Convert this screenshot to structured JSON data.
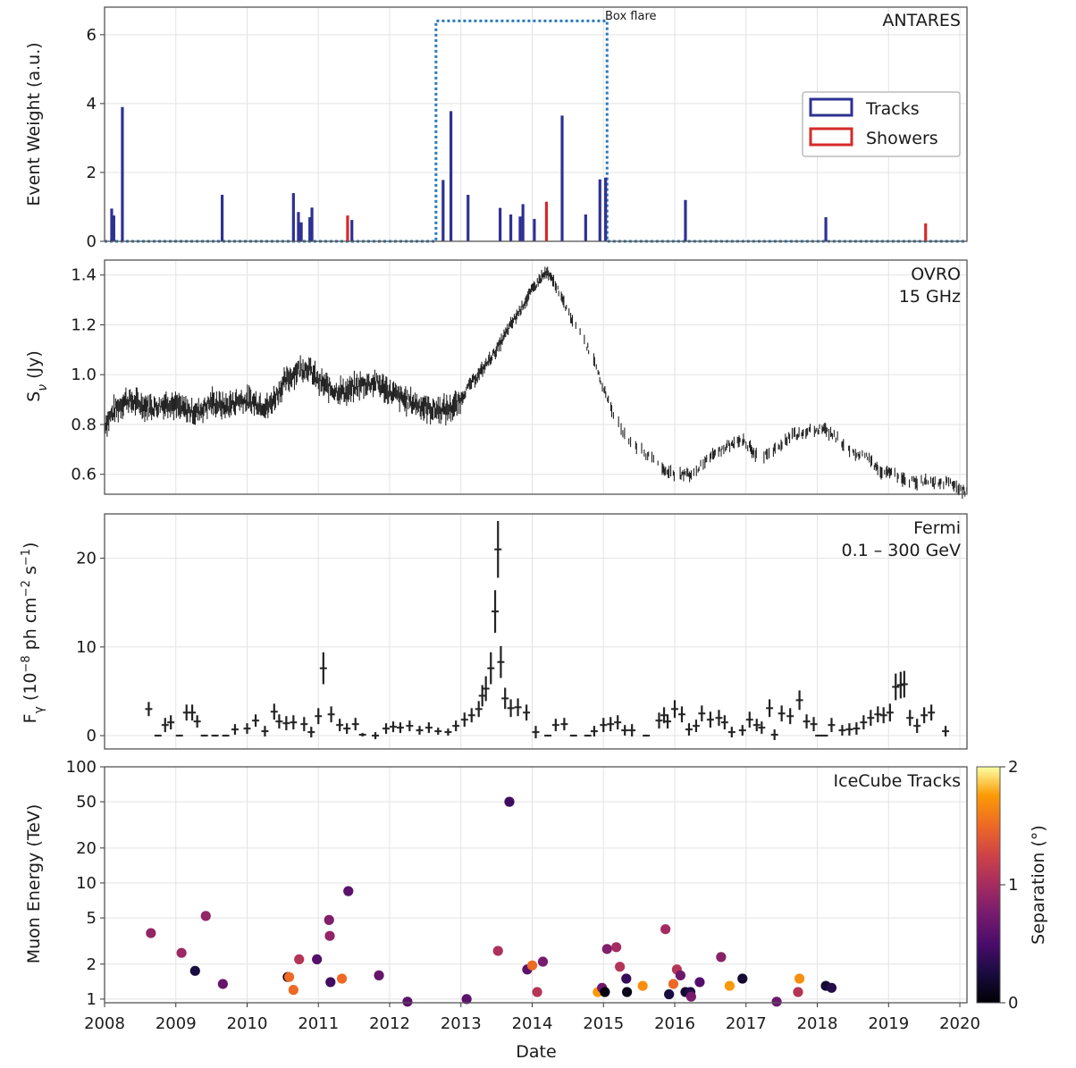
{
  "chart_data": [
    {
      "type": "bar",
      "panel": "antares",
      "label": "ANTARES",
      "ylabel": "Event Weight (a.u.)",
      "ylim": [
        0,
        6.8
      ],
      "yticks": [
        0,
        2,
        4,
        6
      ],
      "legend": {
        "position": "right",
        "entries": [
          {
            "name": "Tracks",
            "color": "#2e3192"
          },
          {
            "name": "Showers",
            "color": "#d42a2a"
          }
        ]
      },
      "box_flare": {
        "label": "Box flare",
        "start": 2012.65,
        "end": 2015.05,
        "height": 6.4,
        "color": "#2a7ab9"
      },
      "tracks": [
        {
          "x": 2008.1,
          "w": 0.95
        },
        {
          "x": 2008.13,
          "w": 0.75
        },
        {
          "x": 2008.25,
          "w": 3.9
        },
        {
          "x": 2009.65,
          "w": 1.35
        },
        {
          "x": 2010.65,
          "w": 1.4
        },
        {
          "x": 2010.72,
          "w": 0.85
        },
        {
          "x": 2010.76,
          "w": 0.55
        },
        {
          "x": 2010.88,
          "w": 0.7
        },
        {
          "x": 2010.91,
          "w": 0.98
        },
        {
          "x": 2011.47,
          "w": 0.62
        },
        {
          "x": 2012.75,
          "w": 1.78
        },
        {
          "x": 2012.86,
          "w": 3.78
        },
        {
          "x": 2013.1,
          "w": 1.35
        },
        {
          "x": 2013.55,
          "w": 0.97
        },
        {
          "x": 2013.7,
          "w": 0.78
        },
        {
          "x": 2013.83,
          "w": 0.72
        },
        {
          "x": 2013.87,
          "w": 1.08
        },
        {
          "x": 2014.03,
          "w": 0.65
        },
        {
          "x": 2014.42,
          "w": 3.65
        },
        {
          "x": 2014.75,
          "w": 0.78
        },
        {
          "x": 2014.95,
          "w": 1.8
        },
        {
          "x": 2015.03,
          "w": 1.85
        },
        {
          "x": 2016.15,
          "w": 1.2
        },
        {
          "x": 2018.12,
          "w": 0.7
        }
      ],
      "showers": [
        {
          "x": 2011.41,
          "w": 0.75
        },
        {
          "x": 2014.2,
          "w": 1.15
        },
        {
          "x": 2019.52,
          "w": 0.52
        }
      ]
    },
    {
      "type": "line",
      "panel": "ovro",
      "label": "OVRO",
      "sublabel": "15 GHz",
      "ylabel": "S_ν (Jy)",
      "ylim": [
        0.52,
        1.46
      ],
      "yticks": [
        0.6,
        0.8,
        1.0,
        1.2,
        1.4
      ],
      "x": [
        2008.0,
        2008.15,
        2008.3,
        2008.5,
        2008.7,
        2008.9,
        2009.1,
        2009.3,
        2009.5,
        2009.7,
        2009.9,
        2010.1,
        2010.3,
        2010.5,
        2010.7,
        2010.85,
        2011.0,
        2011.2,
        2011.4,
        2011.6,
        2011.8,
        2012.0,
        2012.2,
        2012.4,
        2012.6,
        2012.8,
        2012.95,
        2013.1,
        2013.3,
        2013.5,
        2013.7,
        2013.85,
        2014.0,
        2014.1,
        2014.2,
        2014.35,
        2014.5,
        2014.7,
        2014.85,
        2015.0,
        2015.15,
        2015.35,
        2015.5,
        2015.7,
        2015.85,
        2016.0,
        2016.2,
        2016.4,
        2016.6,
        2016.8,
        2016.95,
        2017.2,
        2017.4,
        2017.6,
        2017.8,
        2017.95,
        2018.1,
        2018.3,
        2018.5,
        2018.7,
        2018.9,
        2019.1,
        2019.3,
        2019.5,
        2019.7,
        2019.85,
        2020.0,
        2020.1
      ],
      "values": [
        0.8,
        0.86,
        0.9,
        0.88,
        0.87,
        0.89,
        0.86,
        0.85,
        0.89,
        0.87,
        0.9,
        0.89,
        0.87,
        0.96,
        1.02,
        1.03,
        0.97,
        0.94,
        0.93,
        0.96,
        0.97,
        0.93,
        0.9,
        0.88,
        0.86,
        0.86,
        0.88,
        0.95,
        1.02,
        1.1,
        1.2,
        1.27,
        1.34,
        1.38,
        1.41,
        1.35,
        1.25,
        1.16,
        1.06,
        0.95,
        0.83,
        0.74,
        0.7,
        0.66,
        0.62,
        0.6,
        0.6,
        0.64,
        0.69,
        0.72,
        0.74,
        0.66,
        0.7,
        0.75,
        0.77,
        0.78,
        0.78,
        0.74,
        0.69,
        0.67,
        0.61,
        0.6,
        0.57,
        0.57,
        0.56,
        0.57,
        0.54,
        0.53
      ]
    },
    {
      "type": "scatter",
      "panel": "fermi",
      "label": "Fermi",
      "sublabel": "0.1 – 300 GeV",
      "ylabel": "F_γ (10^-8 ph cm^-2 s^-1)",
      "ylim": [
        -1.5,
        25
      ],
      "yticks": [
        0,
        10,
        20
      ],
      "points": [
        [
          2008.62,
          3.0,
          0.8
        ],
        [
          2008.75,
          0.0,
          0.1
        ],
        [
          2008.85,
          1.2,
          0.8
        ],
        [
          2008.93,
          1.5,
          0.8
        ],
        [
          2009.05,
          0.0,
          0.1
        ],
        [
          2009.15,
          2.6,
          0.9
        ],
        [
          2009.23,
          2.6,
          0.9
        ],
        [
          2009.3,
          1.6,
          0.7
        ],
        [
          2009.4,
          0.0,
          0.1
        ],
        [
          2009.55,
          0.0,
          0.1
        ],
        [
          2009.7,
          0.0,
          0.1
        ],
        [
          2009.83,
          0.7,
          0.6
        ],
        [
          2010.0,
          0.8,
          0.6
        ],
        [
          2010.12,
          1.7,
          0.7
        ],
        [
          2010.25,
          0.5,
          0.6
        ],
        [
          2010.38,
          2.7,
          0.9
        ],
        [
          2010.45,
          1.6,
          0.8
        ],
        [
          2010.55,
          1.4,
          0.8
        ],
        [
          2010.65,
          1.5,
          0.8
        ],
        [
          2010.8,
          1.3,
          0.8
        ],
        [
          2010.9,
          0.4,
          0.6
        ],
        [
          2011.0,
          2.2,
          0.9
        ],
        [
          2011.07,
          7.6,
          1.8
        ],
        [
          2011.18,
          2.4,
          0.9
        ],
        [
          2011.3,
          1.2,
          0.7
        ],
        [
          2011.4,
          0.8,
          0.6
        ],
        [
          2011.52,
          1.3,
          0.7
        ],
        [
          2011.62,
          0.1,
          0.2
        ],
        [
          2011.8,
          0.0,
          0.4
        ],
        [
          2011.95,
          0.8,
          0.6
        ],
        [
          2012.05,
          1.0,
          0.6
        ],
        [
          2012.15,
          0.9,
          0.6
        ],
        [
          2012.28,
          1.1,
          0.6
        ],
        [
          2012.42,
          0.6,
          0.5
        ],
        [
          2012.55,
          0.9,
          0.6
        ],
        [
          2012.68,
          0.5,
          0.4
        ],
        [
          2012.82,
          0.4,
          0.4
        ],
        [
          2012.93,
          1.1,
          0.6
        ],
        [
          2013.05,
          1.8,
          0.8
        ],
        [
          2013.15,
          2.3,
          0.8
        ],
        [
          2013.25,
          3.0,
          0.9
        ],
        [
          2013.3,
          4.5,
          1.2
        ],
        [
          2013.35,
          5.3,
          1.4
        ],
        [
          2013.42,
          7.6,
          1.8
        ],
        [
          2013.48,
          14.0,
          2.4
        ],
        [
          2013.52,
          21.0,
          3.2
        ],
        [
          2013.56,
          8.3,
          1.8
        ],
        [
          2013.62,
          4.2,
          1.2
        ],
        [
          2013.7,
          3.1,
          1.0
        ],
        [
          2013.8,
          3.2,
          1.0
        ],
        [
          2013.92,
          2.6,
          0.9
        ],
        [
          2014.05,
          0.4,
          0.7
        ],
        [
          2014.22,
          0.0,
          0.1
        ],
        [
          2014.33,
          1.2,
          0.7
        ],
        [
          2014.45,
          1.3,
          0.7
        ],
        [
          2014.58,
          0.0,
          0.1
        ],
        [
          2014.78,
          0.0,
          0.1
        ],
        [
          2014.87,
          0.5,
          0.6
        ],
        [
          2015.0,
          1.2,
          0.8
        ],
        [
          2015.1,
          1.3,
          0.8
        ],
        [
          2015.2,
          1.5,
          0.8
        ],
        [
          2015.3,
          0.6,
          0.6
        ],
        [
          2015.4,
          0.6,
          0.7
        ],
        [
          2015.6,
          0.0,
          0.1
        ],
        [
          2015.78,
          1.7,
          0.9
        ],
        [
          2015.85,
          2.3,
          0.9
        ],
        [
          2015.9,
          1.6,
          0.8
        ],
        [
          2016.0,
          3.0,
          1.0
        ],
        [
          2016.1,
          2.4,
          0.9
        ],
        [
          2016.2,
          0.7,
          0.7
        ],
        [
          2016.3,
          1.1,
          0.7
        ],
        [
          2016.38,
          2.5,
          0.9
        ],
        [
          2016.5,
          1.8,
          0.9
        ],
        [
          2016.62,
          2.0,
          0.9
        ],
        [
          2016.7,
          1.5,
          0.8
        ],
        [
          2016.8,
          0.4,
          0.6
        ],
        [
          2016.95,
          0.6,
          0.6
        ],
        [
          2017.05,
          1.8,
          0.9
        ],
        [
          2017.15,
          1.2,
          0.7
        ],
        [
          2017.22,
          0.9,
          0.7
        ],
        [
          2017.33,
          3.1,
          1.0
        ],
        [
          2017.4,
          0.1,
          0.6
        ],
        [
          2017.5,
          2.5,
          0.9
        ],
        [
          2017.62,
          2.2,
          0.9
        ],
        [
          2017.75,
          4.0,
          1.1
        ],
        [
          2017.85,
          1.6,
          0.8
        ],
        [
          2017.95,
          1.3,
          0.8
        ],
        [
          2018.02,
          0.0,
          0.1
        ],
        [
          2018.1,
          0.0,
          0.1
        ],
        [
          2018.2,
          1.2,
          0.8
        ],
        [
          2018.35,
          0.6,
          0.6
        ],
        [
          2018.45,
          0.7,
          0.7
        ],
        [
          2018.55,
          0.8,
          0.7
        ],
        [
          2018.65,
          1.5,
          0.8
        ],
        [
          2018.75,
          2.0,
          0.9
        ],
        [
          2018.85,
          2.4,
          0.9
        ],
        [
          2018.93,
          2.3,
          0.9
        ],
        [
          2019.02,
          2.6,
          1.0
        ],
        [
          2019.1,
          5.5,
          1.5
        ],
        [
          2019.17,
          5.7,
          1.5
        ],
        [
          2019.22,
          5.8,
          1.5
        ],
        [
          2019.3,
          2.0,
          0.9
        ],
        [
          2019.4,
          1.1,
          0.8
        ],
        [
          2019.5,
          2.3,
          0.9
        ],
        [
          2019.6,
          2.6,
          0.9
        ],
        [
          2019.8,
          0.5,
          0.6
        ]
      ]
    },
    {
      "type": "scatter",
      "panel": "icecube",
      "label": "IceCube Tracks",
      "ylabel": "Muon Energy (TeV)",
      "yscale": "log",
      "ylim": [
        0.93,
        100
      ],
      "yticks": [
        1,
        2,
        5,
        10,
        20,
        50,
        100
      ],
      "colorbar": {
        "label": "Separation (°)",
        "range": [
          0,
          2
        ],
        "ticks": [
          0,
          1,
          2
        ]
      },
      "points": [
        [
          2008.65,
          3.7,
          0.9
        ],
        [
          2009.08,
          2.5,
          0.95
        ],
        [
          2009.27,
          1.75,
          0.25
        ],
        [
          2009.42,
          5.2,
          0.9
        ],
        [
          2009.66,
          1.35,
          0.65
        ],
        [
          2010.57,
          1.55,
          0.1
        ],
        [
          2010.59,
          1.55,
          1.5
        ],
        [
          2010.65,
          1.2,
          1.5
        ],
        [
          2010.73,
          2.2,
          1.1
        ],
        [
          2010.98,
          2.2,
          0.55
        ],
        [
          2011.15,
          4.8,
          0.8
        ],
        [
          2011.16,
          3.5,
          0.9
        ],
        [
          2011.17,
          1.4,
          0.45
        ],
        [
          2011.33,
          1.5,
          1.5
        ],
        [
          2011.42,
          8.5,
          0.6
        ],
        [
          2011.85,
          1.6,
          0.65
        ],
        [
          2012.25,
          0.95,
          0.6
        ],
        [
          2013.08,
          1.0,
          0.6
        ],
        [
          2013.52,
          2.6,
          1.05
        ],
        [
          2013.68,
          50.0,
          0.45
        ],
        [
          2013.93,
          1.8,
          0.6
        ],
        [
          2014.0,
          1.95,
          1.5
        ],
        [
          2014.07,
          1.15,
          1.1
        ],
        [
          2014.15,
          2.1,
          0.75
        ],
        [
          2014.92,
          1.15,
          1.75
        ],
        [
          2014.98,
          1.25,
          0.7
        ],
        [
          2015.02,
          1.15,
          0.05
        ],
        [
          2015.05,
          2.7,
          0.8
        ],
        [
          2015.18,
          2.8,
          1.0
        ],
        [
          2015.23,
          1.9,
          1.1
        ],
        [
          2015.32,
          1.5,
          0.4
        ],
        [
          2015.33,
          1.15,
          0.1
        ],
        [
          2015.55,
          1.3,
          1.7
        ],
        [
          2015.87,
          4.0,
          1.0
        ],
        [
          2015.92,
          1.1,
          0.25
        ],
        [
          2015.98,
          1.35,
          1.5
        ],
        [
          2016.03,
          1.8,
          1.1
        ],
        [
          2016.08,
          1.6,
          0.7
        ],
        [
          2016.15,
          1.15,
          0.2
        ],
        [
          2016.22,
          1.15,
          0.3
        ],
        [
          2016.23,
          1.05,
          0.75
        ],
        [
          2016.35,
          1.4,
          0.55
        ],
        [
          2016.65,
          2.3,
          0.85
        ],
        [
          2016.77,
          1.3,
          1.75
        ],
        [
          2016.95,
          1.5,
          0.2
        ],
        [
          2017.43,
          0.95,
          0.7
        ],
        [
          2017.73,
          1.15,
          1.1
        ],
        [
          2017.75,
          1.5,
          1.7
        ],
        [
          2018.12,
          1.3,
          0.2
        ],
        [
          2018.2,
          1.25,
          0.3
        ]
      ]
    }
  ],
  "x_axis": {
    "label": "Date",
    "ticks": [
      "2008",
      "2009",
      "2010",
      "2011",
      "2012",
      "2013",
      "2014",
      "2015",
      "2016",
      "2017",
      "2018",
      "2019",
      "2020"
    ]
  },
  "colors": {
    "track": "#2e3192",
    "shower": "#d42a2a",
    "box": "#2a7ab9",
    "curve": "#222222"
  }
}
